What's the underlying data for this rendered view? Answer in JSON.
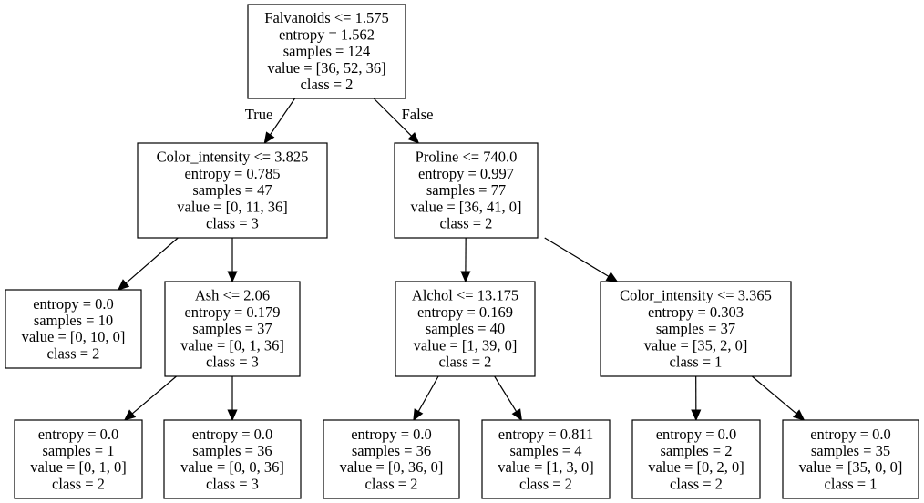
{
  "tree": {
    "nodes": [
      {
        "id": "n0",
        "lines": [
          "Falvanoids <= 1.575",
          "entropy = 1.562",
          "samples = 124",
          "value = [36, 52, 36]",
          "class = 2"
        ]
      },
      {
        "id": "n1",
        "lines": [
          "Color_intensity <= 3.825",
          "entropy = 0.785",
          "samples = 47",
          "value = [0, 11, 36]",
          "class = 3"
        ]
      },
      {
        "id": "n2",
        "lines": [
          "Proline <= 740.0",
          "entropy = 0.997",
          "samples = 77",
          "value = [36, 41, 0]",
          "class = 2"
        ]
      },
      {
        "id": "n3",
        "lines": [
          "entropy = 0.0",
          "samples = 10",
          "value = [0, 10, 0]",
          "class = 2"
        ]
      },
      {
        "id": "n4",
        "lines": [
          "Ash <= 2.06",
          "entropy = 0.179",
          "samples = 37",
          "value = [0, 1, 36]",
          "class = 3"
        ]
      },
      {
        "id": "n5",
        "lines": [
          "Alchol <= 13.175",
          "entropy = 0.169",
          "samples = 40",
          "value = [1, 39, 0]",
          "class = 2"
        ]
      },
      {
        "id": "n6",
        "lines": [
          "Color_intensity <= 3.365",
          "entropy = 0.303",
          "samples = 37",
          "value = [35, 2, 0]",
          "class = 1"
        ]
      },
      {
        "id": "n7",
        "lines": [
          "entropy = 0.0",
          "samples = 1",
          "value = [0, 1, 0]",
          "class = 2"
        ]
      },
      {
        "id": "n8",
        "lines": [
          "entropy = 0.0",
          "samples = 36",
          "value = [0, 0, 36]",
          "class = 3"
        ]
      },
      {
        "id": "n9",
        "lines": [
          "entropy = 0.0",
          "samples = 36",
          "value = [0, 36, 0]",
          "class = 2"
        ]
      },
      {
        "id": "n10",
        "lines": [
          "entropy = 0.811",
          "samples = 4",
          "value = [1, 3, 0]",
          "class = 2"
        ]
      },
      {
        "id": "n11",
        "lines": [
          "entropy = 0.0",
          "samples = 2",
          "value = [0, 2, 0]",
          "class = 2"
        ]
      },
      {
        "id": "n12",
        "lines": [
          "entropy = 0.0",
          "samples = 35",
          "value = [35, 0, 0]",
          "class = 1"
        ]
      }
    ],
    "edges": [
      {
        "from": "n0",
        "to": "n1",
        "label": "True"
      },
      {
        "from": "n0",
        "to": "n2",
        "label": "False"
      },
      {
        "from": "n1",
        "to": "n3"
      },
      {
        "from": "n1",
        "to": "n4"
      },
      {
        "from": "n2",
        "to": "n5"
      },
      {
        "from": "n2",
        "to": "n6"
      },
      {
        "from": "n4",
        "to": "n7"
      },
      {
        "from": "n4",
        "to": "n8"
      },
      {
        "from": "n5",
        "to": "n9"
      },
      {
        "from": "n5",
        "to": "n10"
      },
      {
        "from": "n6",
        "to": "n11"
      },
      {
        "from": "n6",
        "to": "n12"
      }
    ]
  }
}
